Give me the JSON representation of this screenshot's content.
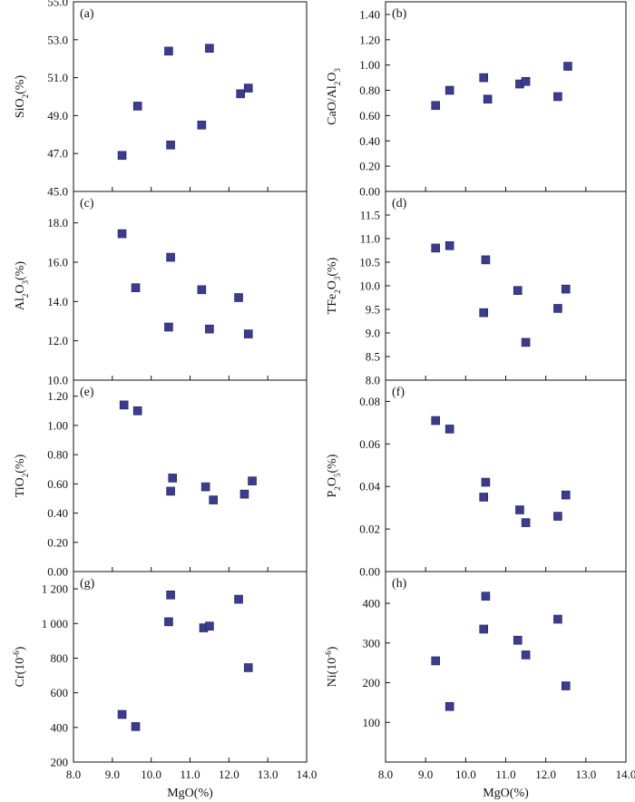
{
  "colors": {
    "marker": "#3b3b8f",
    "marker_edge": "#23235e",
    "axis": "#111111"
  },
  "chart_data": [
    {
      "type": "scatter",
      "panel": "(a)",
      "ylabel": "SiO2(%)",
      "xlabel": "",
      "xlim": [
        8.0,
        14.0
      ],
      "ylim": [
        45.0,
        55.0
      ],
      "yticks": [
        "45.0",
        "47.0",
        "49.0",
        "51.0",
        "53.0",
        "55.0"
      ],
      "xticks": [],
      "points": [
        [
          9.25,
          46.9
        ],
        [
          9.65,
          49.5
        ],
        [
          10.45,
          52.4
        ],
        [
          10.5,
          47.45
        ],
        [
          11.3,
          48.5
        ],
        [
          11.5,
          52.55
        ],
        [
          12.3,
          50.15
        ],
        [
          12.5,
          50.45
        ]
      ]
    },
    {
      "type": "scatter",
      "panel": "(b)",
      "ylabel": "CaO/Al2O3",
      "xlabel": "",
      "xlim": [
        8.0,
        14.0
      ],
      "ylim": [
        0.0,
        1.5
      ],
      "yticks": [
        "0.00",
        "0.20",
        "0.40",
        "0.60",
        "0.80",
        "1.00",
        "1.20",
        "1.40"
      ],
      "xticks": [],
      "points": [
        [
          9.25,
          0.68
        ],
        [
          9.6,
          0.8
        ],
        [
          10.45,
          0.9
        ],
        [
          10.55,
          0.73
        ],
        [
          11.35,
          0.85
        ],
        [
          11.5,
          0.87
        ],
        [
          12.3,
          0.75
        ],
        [
          12.55,
          0.99
        ]
      ]
    },
    {
      "type": "scatter",
      "panel": "(c)",
      "ylabel": "Al2O3(%)",
      "xlabel": "",
      "xlim": [
        8.0,
        14.0
      ],
      "ylim": [
        10.0,
        19.6
      ],
      "yticks": [
        "10.0",
        "12.0",
        "14.0",
        "16.0",
        "18.0"
      ],
      "xticks": [],
      "points": [
        [
          9.25,
          17.45
        ],
        [
          9.6,
          14.7
        ],
        [
          10.45,
          12.7
        ],
        [
          10.5,
          16.25
        ],
        [
          11.3,
          14.6
        ],
        [
          11.5,
          12.6
        ],
        [
          12.25,
          14.2
        ],
        [
          12.5,
          12.35
        ]
      ]
    },
    {
      "type": "scatter",
      "panel": "(d)",
      "ylabel": "TFe2O3(%)",
      "xlabel": "",
      "xlim": [
        8.0,
        14.0
      ],
      "ylim": [
        8.0,
        12.0
      ],
      "yticks": [
        "8.0",
        "8.5",
        "9.0",
        "9.5",
        "10.0",
        "10.5",
        "11.0",
        "11.5"
      ],
      "xticks": [],
      "points": [
        [
          9.25,
          10.8
        ],
        [
          9.6,
          10.85
        ],
        [
          10.45,
          9.43
        ],
        [
          10.5,
          10.55
        ],
        [
          11.3,
          9.9
        ],
        [
          11.5,
          8.8
        ],
        [
          12.3,
          9.52
        ],
        [
          12.5,
          9.93
        ]
      ]
    },
    {
      "type": "scatter",
      "panel": "(e)",
      "ylabel": "TiO2(%)",
      "xlabel": "",
      "xlim": [
        8.0,
        14.0
      ],
      "ylim": [
        0.0,
        1.31
      ],
      "yticks": [
        "0.00",
        "0.20",
        "0.40",
        "0.60",
        "0.80",
        "1.00",
        "1.20"
      ],
      "xticks": [],
      "points": [
        [
          9.3,
          1.14
        ],
        [
          9.65,
          1.1
        ],
        [
          10.5,
          0.55
        ],
        [
          10.55,
          0.64
        ],
        [
          11.4,
          0.58
        ],
        [
          11.6,
          0.49
        ],
        [
          12.4,
          0.53
        ],
        [
          12.6,
          0.62
        ]
      ]
    },
    {
      "type": "scatter",
      "panel": "(f)",
      "ylabel": "P2O5(%)",
      "xlabel": "",
      "xlim": [
        8.0,
        14.0
      ],
      "ylim": [
        0.0,
        0.09
      ],
      "yticks": [
        "0.00",
        "0.02",
        "0.04",
        "0.06",
        "0.08"
      ],
      "xticks": [],
      "points": [
        [
          9.25,
          0.071
        ],
        [
          9.6,
          0.067
        ],
        [
          10.45,
          0.035
        ],
        [
          10.5,
          0.042
        ],
        [
          11.35,
          0.029
        ],
        [
          11.5,
          0.023
        ],
        [
          12.3,
          0.026
        ],
        [
          12.5,
          0.036
        ]
      ]
    },
    {
      "type": "scatter",
      "panel": "(g)",
      "ylabel": "Cr(10-6)",
      "xlabel": "MgO(%)",
      "xlim": [
        8.0,
        14.0
      ],
      "ylim": [
        200,
        1300
      ],
      "yticks": [
        "200",
        "400",
        "600",
        "800",
        "1 000",
        "1 200"
      ],
      "xticks": [
        "8.0",
        "9.0",
        "10.0",
        "11.0",
        "12.0",
        "13.0",
        "14.0"
      ],
      "points": [
        [
          9.25,
          475
        ],
        [
          9.6,
          405
        ],
        [
          10.45,
          1010
        ],
        [
          10.5,
          1165
        ],
        [
          11.35,
          975
        ],
        [
          11.5,
          985
        ],
        [
          12.25,
          1140
        ],
        [
          12.5,
          745
        ]
      ]
    },
    {
      "type": "scatter",
      "panel": "(h)",
      "ylabel": "Ni(10-6)",
      "xlabel": "MgO(%)",
      "xlim": [
        8.0,
        14.0
      ],
      "ylim": [
        0,
        480
      ],
      "yticks": [
        "100",
        "200",
        "300",
        "400"
      ],
      "xticks": [
        "8.0",
        "9.0",
        "10.0",
        "11.0",
        "12.0",
        "13.0",
        "14.0"
      ],
      "points": [
        [
          9.25,
          255
        ],
        [
          9.6,
          140
        ],
        [
          10.45,
          335
        ],
        [
          10.5,
          418
        ],
        [
          11.3,
          307
        ],
        [
          11.5,
          270
        ],
        [
          12.3,
          360
        ],
        [
          12.5,
          192
        ]
      ]
    }
  ]
}
